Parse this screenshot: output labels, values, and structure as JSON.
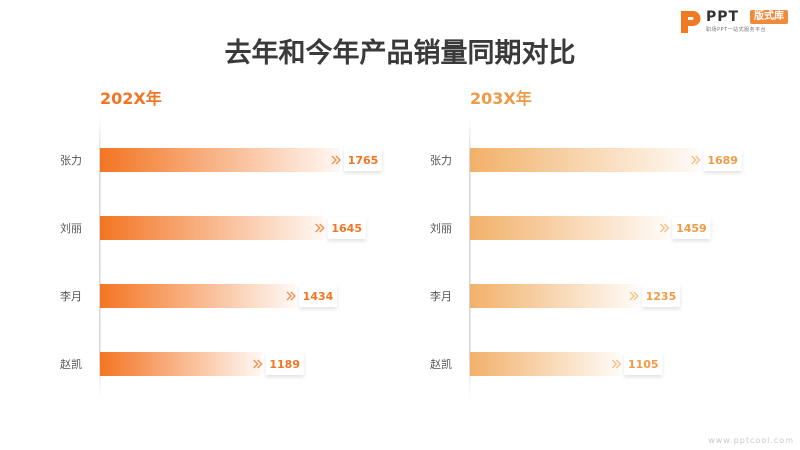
{
  "logo": {
    "icon": "ppt-p-logo-icon",
    "text": "PPT",
    "badge": "版式库",
    "tagline": "职场PPT一站式服务平台"
  },
  "title": "去年和今年产品销量同期对比",
  "watermark": "www.pptcool.com",
  "colors": {
    "title": "#3a3a3a",
    "left_bar": "#f37523",
    "right_bar": "#f2b16a",
    "left_label": "#f37523",
    "right_label": "#ef9a45"
  },
  "chart_data": [
    {
      "type": "bar",
      "orientation": "horizontal",
      "title": "202X年",
      "categories": [
        "张力",
        "刘丽",
        "李月",
        "赵凯"
      ],
      "values": [
        1765,
        1645,
        1434,
        1189
      ]
    },
    {
      "type": "bar",
      "orientation": "horizontal",
      "title": "203X年",
      "categories": [
        "张力",
        "刘丽",
        "李月",
        "赵凯"
      ],
      "values": [
        1689,
        1459,
        1235,
        1105
      ]
    }
  ]
}
